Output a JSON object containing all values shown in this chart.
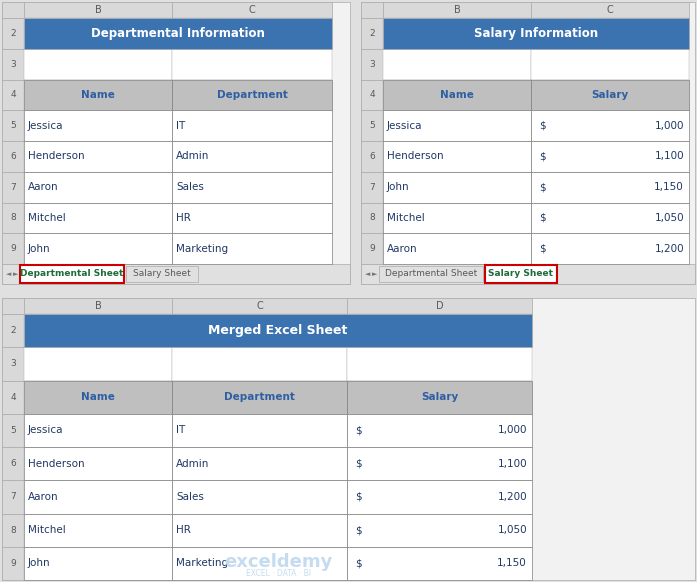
{
  "title_bg": "#3B72B0",
  "header_bg": "#BFBFBF",
  "header_text_color": "#2E5FA3",
  "cell_bg": "#FFFFFF",
  "col_hdr_bg": "#D9D9D9",
  "col_hdr_text": "#595959",
  "rn_bg": "#D9D9D9",
  "rn_text": "#595959",
  "border_color": "#808080",
  "light_border": "#AAAAAA",
  "tab_active_border": "#CC0000",
  "tab_active_text": "#1F6B3B",
  "tab_inactive_text": "#595959",
  "tab_bg": "#E0E0E0",
  "sheet_bg": "#F2F2F2",
  "outer_bg": "#E0E0E0",
  "data_text": "#1F3864",
  "white": "#FFFFFF",
  "dept_title": "Departmental Information",
  "dept_headers": [
    "Name",
    "Department"
  ],
  "dept_data": [
    [
      "Jessica",
      "IT"
    ],
    [
      "Henderson",
      "Admin"
    ],
    [
      "Aaron",
      "Sales"
    ],
    [
      "Mitchel",
      "HR"
    ],
    [
      "John",
      "Marketing"
    ]
  ],
  "dept_tab_active": "Departmental Sheet",
  "dept_tab_inactive": "Salary Sheet",
  "sal_title": "Salary Information",
  "sal_headers": [
    "Name",
    "Salary"
  ],
  "sal_data": [
    [
      "Jessica",
      "$",
      "1,000"
    ],
    [
      "Henderson",
      "$",
      "1,100"
    ],
    [
      "John",
      "$",
      "1,150"
    ],
    [
      "Mitchel",
      "$",
      "1,050"
    ],
    [
      "Aaron",
      "$",
      "1,200"
    ]
  ],
  "sal_tab_inactive": "Departmental Sheet",
  "sal_tab_active": "Salary Sheet",
  "merged_title": "Merged Excel Sheet",
  "merged_headers": [
    "Name",
    "Department",
    "Salary"
  ],
  "merged_data": [
    [
      "Jessica",
      "IT",
      "$",
      "1,000"
    ],
    [
      "Henderson",
      "Admin",
      "$",
      "1,100"
    ],
    [
      "Aaron",
      "Sales",
      "$",
      "1,200"
    ],
    [
      "Mitchel",
      "HR",
      "$",
      "1,050"
    ],
    [
      "John",
      "Marketing",
      "$",
      "1,150"
    ]
  ]
}
